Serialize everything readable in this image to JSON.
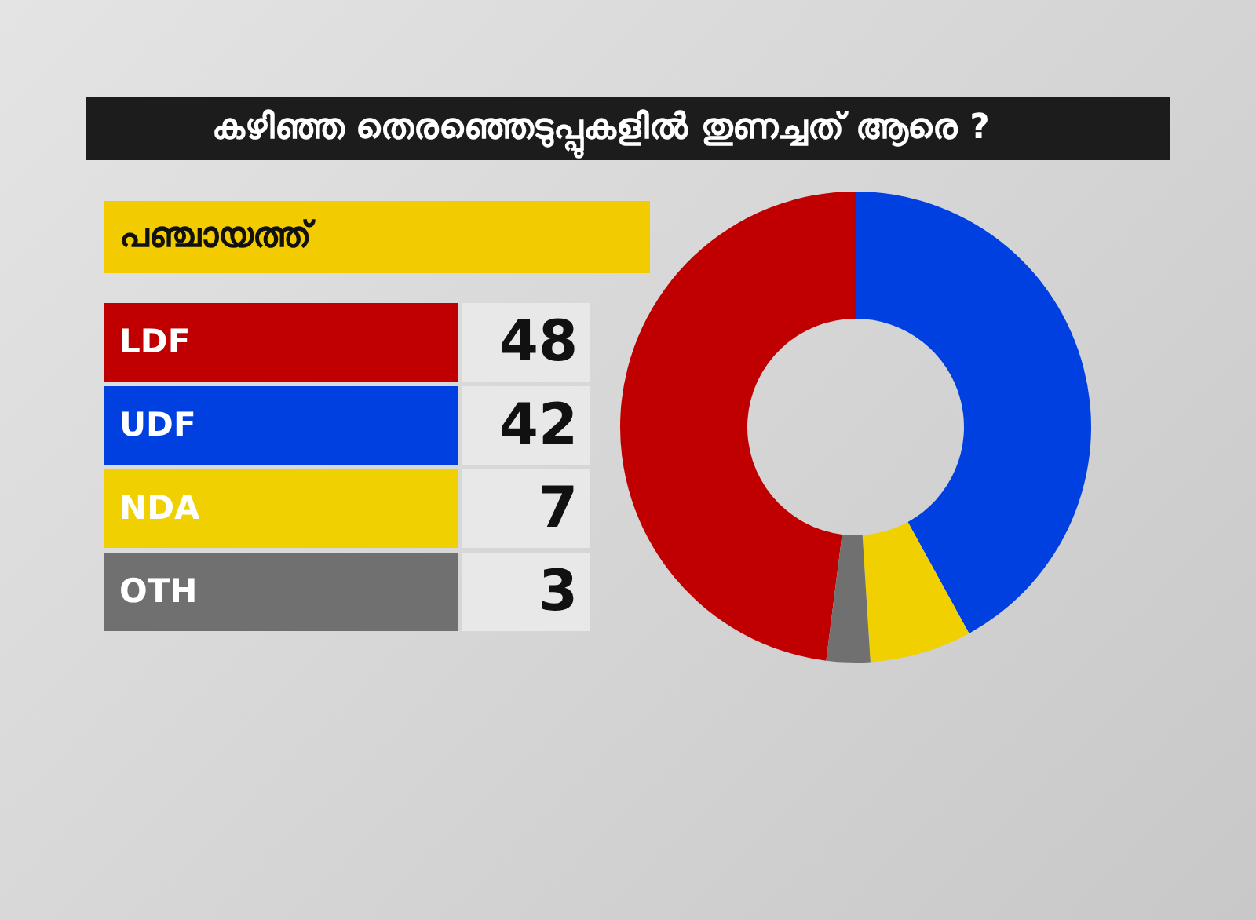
{
  "chart_data": {
    "type": "donut",
    "title": "കഴിഞ്ഞ തെരഞ്ഞെടുപ്പുകളിൽ തുണച്ചത് ആരെ ?",
    "subtitle": "പഞ്ചായത്ത്",
    "categories": [
      "LDF",
      "UDF",
      "NDA",
      "OTH"
    ],
    "values": [
      48,
      42,
      7,
      3
    ],
    "colors": [
      "#c00000",
      "#0040e0",
      "#f0d000",
      "#707070"
    ],
    "data_labels": true,
    "legend": "left"
  }
}
